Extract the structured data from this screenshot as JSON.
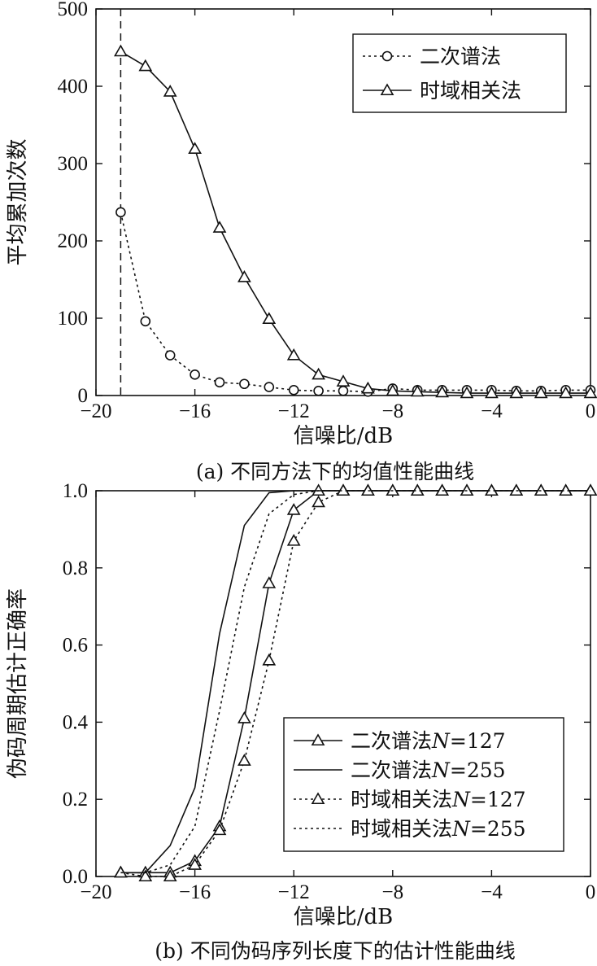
{
  "chart_data": [
    {
      "type": "line",
      "caption": "(a) 不同方法下的均值性能曲线",
      "xlabel": "信噪比/dB",
      "ylabel": "平均累加次数",
      "xlim": [
        -20,
        0
      ],
      "ylim": [
        0,
        500
      ],
      "xticks": [
        -20,
        -16,
        -12,
        -8,
        -4,
        0
      ],
      "xtick_labels": [
        "−20",
        "−16",
        "−12",
        "−8",
        "−4",
        "0"
      ],
      "yticks": [
        0,
        100,
        200,
        300,
        400,
        500
      ],
      "ytick_labels": [
        "0",
        "100",
        "200",
        "300",
        "400",
        "500"
      ],
      "grid": false,
      "legend_position": "top-right",
      "vline_x": -19,
      "series": [
        {
          "name": "二次谱法",
          "line_style": "dotted",
          "marker": "circle",
          "x": [
            -19,
            -18,
            -17,
            -16,
            -15,
            -14,
            -13,
            -12,
            -11,
            -10,
            -9,
            -8,
            -7,
            -6,
            -5,
            -4,
            -3,
            -2,
            -1,
            0
          ],
          "y": [
            237,
            96,
            52,
            27,
            17,
            15,
            11,
            7,
            6,
            6,
            5,
            9,
            7,
            7,
            7,
            7,
            6,
            6,
            7,
            7
          ]
        },
        {
          "name": "时域相关法",
          "line_style": "solid",
          "marker": "triangle",
          "x": [
            -19,
            -18,
            -17,
            -16,
            -15,
            -14,
            -13,
            -12,
            -11,
            -10,
            -9,
            -8,
            -7,
            -6,
            -5,
            -4,
            -3,
            -2,
            -1,
            0
          ],
          "y": [
            445,
            426,
            393,
            319,
            217,
            153,
            99,
            52,
            27,
            18,
            9,
            6,
            5,
            4,
            3,
            3,
            3,
            3,
            3,
            3
          ]
        }
      ]
    },
    {
      "type": "line",
      "caption": "(b) 不同伪码序列长度下的估计性能曲线",
      "xlabel": "信噪比/dB",
      "ylabel": "伪码周期估计正确率",
      "xlim": [
        -20,
        0
      ],
      "ylim": [
        0,
        1
      ],
      "xticks": [
        -20,
        -16,
        -12,
        -8,
        -4,
        0
      ],
      "xtick_labels": [
        "−20",
        "−16",
        "−12",
        "−8",
        "−4",
        "0"
      ],
      "yticks": [
        0,
        0.2,
        0.4,
        0.6,
        0.8,
        1.0
      ],
      "ytick_labels": [
        "0.0",
        "0.2",
        "0.4",
        "0.6",
        "0.8",
        "1.0"
      ],
      "grid": false,
      "legend_position": "bottom-right",
      "series": [
        {
          "name": "二次谱法N=127",
          "name_prefix": "二次谱法",
          "name_var": "N",
          "name_suffix": "=127",
          "line_style": "solid",
          "marker": "triangle",
          "x": [
            -19,
            -18,
            -17,
            -16,
            -15,
            -14,
            -13,
            -12,
            -11,
            -10,
            -9,
            -8,
            -7,
            -6,
            -5,
            -4,
            -3,
            -2,
            -1,
            0
          ],
          "y": [
            0.01,
            0.01,
            0.01,
            0.04,
            0.13,
            0.41,
            0.76,
            0.95,
            1.0,
            1.0,
            1.0,
            1.0,
            1.0,
            1.0,
            1.0,
            1.0,
            1.0,
            1.0,
            1.0,
            1.0
          ]
        },
        {
          "name": "二次谱法N=255",
          "name_prefix": "二次谱法",
          "name_var": "N",
          "name_suffix": "=255",
          "line_style": "solid",
          "marker": "none",
          "x": [
            -19,
            -18,
            -17,
            -16,
            -15,
            -14,
            -13,
            -12,
            -11,
            -10,
            -9,
            -8,
            -7,
            -6,
            -5,
            -4,
            -3,
            -2,
            -1,
            0
          ],
          "y": [
            0.01,
            0.01,
            0.08,
            0.23,
            0.63,
            0.91,
            0.995,
            1.0,
            1.0,
            1.0,
            1.0,
            1.0,
            1.0,
            1.0,
            1.0,
            1.0,
            1.0,
            1.0,
            1.0,
            1.0
          ]
        },
        {
          "name": "时域相关法N=127",
          "name_prefix": "时域相关法",
          "name_var": "N",
          "name_suffix": "=127",
          "line_style": "dotted",
          "marker": "triangle",
          "x": [
            -19,
            -18,
            -17,
            -16,
            -15,
            -14,
            -13,
            -12,
            -11,
            -10,
            -9,
            -8,
            -7,
            -6,
            -5,
            -4,
            -3,
            -2,
            -1,
            0
          ],
          "y": [
            0.01,
            0.0,
            0.0,
            0.03,
            0.12,
            0.3,
            0.56,
            0.87,
            0.97,
            1.0,
            1.0,
            1.0,
            1.0,
            1.0,
            1.0,
            1.0,
            1.0,
            1.0,
            1.0,
            1.0
          ]
        },
        {
          "name": "时域相关法N=255",
          "name_prefix": "时域相关法",
          "name_var": "N",
          "name_suffix": "=255",
          "line_style": "dotted",
          "marker": "none",
          "x": [
            -19,
            -18,
            -17,
            -16,
            -15,
            -14,
            -13,
            -12,
            -11,
            -10,
            -9,
            -8,
            -7,
            -6,
            -5,
            -4,
            -3,
            -2,
            -1,
            0
          ],
          "y": [
            0.01,
            0.01,
            0.03,
            0.13,
            0.43,
            0.75,
            0.94,
            0.99,
            1.0,
            1.0,
            1.0,
            1.0,
            1.0,
            1.0,
            1.0,
            1.0,
            1.0,
            1.0,
            1.0,
            1.0
          ]
        }
      ]
    }
  ]
}
